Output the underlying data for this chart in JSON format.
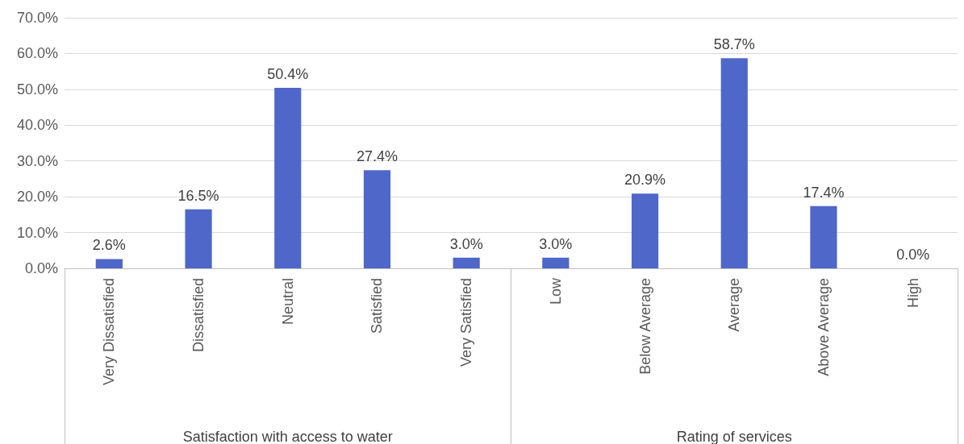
{
  "chart_data": {
    "type": "bar",
    "categories": [
      "Very Dissatisfied",
      "Dissatisfied",
      "Neutral",
      "Satisfied",
      "Very Satisfied",
      "Low",
      "Below Average",
      "Average",
      "Above Average",
      "High"
    ],
    "values": [
      2.6,
      16.5,
      50.4,
      27.4,
      3.0,
      3.0,
      20.9,
      58.7,
      17.4,
      0.0
    ],
    "value_labels": [
      "2.6%",
      "16.5%",
      "50.4%",
      "27.4%",
      "3.0%",
      "3.0%",
      "20.9%",
      "58.7%",
      "17.4%",
      "0.0%"
    ],
    "color": "#4f67c9",
    "ylim": [
      0,
      70
    ],
    "yticks": [
      {
        "value": 0,
        "label": "0.0%"
      },
      {
        "value": 10,
        "label": "10.0%"
      },
      {
        "value": 20,
        "label": "20.0%"
      },
      {
        "value": 30,
        "label": "30.0%"
      },
      {
        "value": 40,
        "label": "40.0%"
      },
      {
        "value": 50,
        "label": "50.0%"
      },
      {
        "value": 60,
        "label": "60.0%"
      },
      {
        "value": 70,
        "label": "70.0%"
      }
    ],
    "grid": "y",
    "annotations": [
      "Satisfaction with access to water",
      "Rating of services"
    ]
  }
}
